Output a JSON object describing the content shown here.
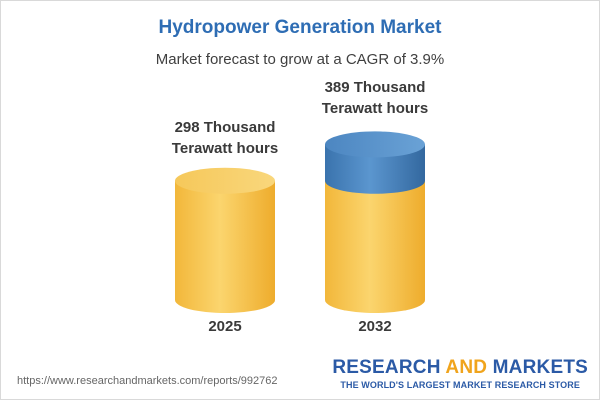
{
  "title": "Hydropower Generation Market",
  "subtitle": "Market forecast to grow at a CAGR of 3.9%",
  "chart_data": {
    "type": "bar",
    "categories": [
      "2025",
      "2032"
    ],
    "values": [
      298,
      389
    ],
    "value_labels": [
      [
        "298 Thousand",
        "Terawatt hours"
      ],
      [
        "389 Thousand",
        "Terawatt hours"
      ]
    ],
    "colors": {
      "base": "#f5c342",
      "growth": "#4a86c0"
    }
  },
  "source_url": "https://www.researchandmarkets.com/reports/992762",
  "brand": {
    "name_part1": "RESEARCH",
    "name_part2": "AND",
    "name_part3": "MARKETS",
    "tagline": "THE WORLD'S LARGEST MARKET RESEARCH STORE"
  }
}
